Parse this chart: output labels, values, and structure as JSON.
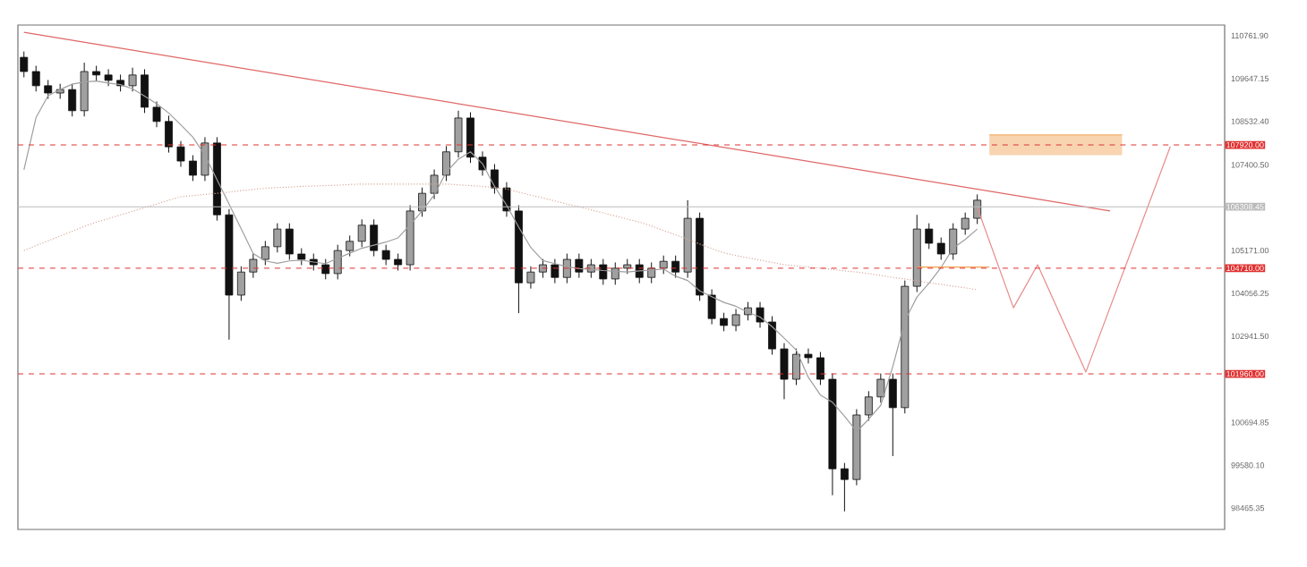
{
  "chart_data": {
    "type": "candlestick",
    "color": "#111111",
    "categories": [
      null,
      null,
      null,
      null,
      null,
      null,
      null,
      null,
      null,
      null,
      null,
      null,
      null,
      null,
      null,
      null,
      null,
      null,
      null,
      null,
      null,
      null,
      null,
      null,
      null,
      null,
      null,
      null,
      null,
      null,
      null,
      null,
      null,
      null,
      null,
      null,
      null,
      null,
      null,
      null,
      null,
      null,
      null,
      null,
      null,
      null,
      null,
      null,
      null,
      null,
      null,
      null,
      null,
      null,
      null,
      null,
      null,
      null,
      null,
      null,
      null,
      null,
      null,
      null,
      null,
      null,
      null,
      null,
      null,
      null,
      null,
      null,
      null,
      null,
      null,
      null,
      null,
      null,
      null,
      null,
      null,
      null,
      null,
      null,
      null,
      null,
      null,
      null,
      null,
      null,
      null,
      null,
      null,
      null,
      null,
      null,
      null,
      null,
      null,
      null
    ],
    "ohlc": [
      [
        110200,
        110350,
        109680,
        109830
      ],
      [
        109830,
        109980,
        109310,
        109460
      ],
      [
        109460,
        109610,
        109120,
        109270
      ],
      [
        109270,
        109510,
        109120,
        109360
      ],
      [
        109360,
        109510,
        108660,
        108810
      ],
      [
        108810,
        110060,
        108660,
        109830
      ],
      [
        109830,
        109980,
        109590,
        109740
      ],
      [
        109740,
        109890,
        109450,
        109600
      ],
      [
        109600,
        109750,
        109310,
        109460
      ],
      [
        109460,
        109930,
        109310,
        109740
      ],
      [
        109740,
        109890,
        108750,
        108900
      ],
      [
        108900,
        109050,
        108380,
        108530
      ],
      [
        108530,
        108680,
        107720,
        107870
      ],
      [
        107870,
        108020,
        107350,
        107500
      ],
      [
        107500,
        107650,
        106980,
        107130
      ],
      [
        107130,
        108120,
        106980,
        107970
      ],
      [
        107970,
        108120,
        105950,
        106100
      ],
      [
        106100,
        106250,
        102850,
        104010
      ],
      [
        104010,
        104760,
        103860,
        104610
      ],
      [
        104610,
        105090,
        104460,
        104940
      ],
      [
        104940,
        105420,
        104790,
        105270
      ],
      [
        105270,
        105880,
        105120,
        105730
      ],
      [
        105730,
        105880,
        104930,
        105080
      ],
      [
        105080,
        105230,
        104790,
        104940
      ],
      [
        104940,
        105090,
        104650,
        104800
      ],
      [
        104800,
        104950,
        104420,
        104570
      ],
      [
        104570,
        105320,
        104420,
        105170
      ],
      [
        105170,
        105560,
        105020,
        105410
      ],
      [
        105410,
        105980,
        105260,
        105830
      ],
      [
        105830,
        105980,
        105020,
        105170
      ],
      [
        105170,
        105320,
        104790,
        104940
      ],
      [
        104940,
        105090,
        104650,
        104800
      ],
      [
        104800,
        106350,
        104650,
        106200
      ],
      [
        106200,
        106810,
        106050,
        106660
      ],
      [
        106660,
        107280,
        106510,
        107130
      ],
      [
        107130,
        107890,
        106980,
        107740
      ],
      [
        107740,
        108810,
        107590,
        108620
      ],
      [
        108620,
        108770,
        107450,
        107600
      ],
      [
        107600,
        107750,
        107120,
        107270
      ],
      [
        107270,
        107420,
        106650,
        106800
      ],
      [
        106800,
        106950,
        106050,
        106200
      ],
      [
        106200,
        106350,
        103540,
        104330
      ],
      [
        104330,
        104760,
        104180,
        104610
      ],
      [
        104610,
        104950,
        104460,
        104800
      ],
      [
        104800,
        104950,
        104320,
        104470
      ],
      [
        104470,
        105090,
        104320,
        104940
      ],
      [
        104940,
        105090,
        104460,
        104610
      ],
      [
        104610,
        104950,
        104460,
        104800
      ],
      [
        104800,
        104950,
        104280,
        104430
      ],
      [
        104430,
        104860,
        104280,
        104710
      ],
      [
        104710,
        104950,
        104560,
        104800
      ],
      [
        104800,
        104950,
        104320,
        104470
      ],
      [
        104470,
        104860,
        104320,
        104710
      ],
      [
        104710,
        105040,
        104560,
        104890
      ],
      [
        104890,
        105040,
        104460,
        104610
      ],
      [
        104610,
        106480,
        104460,
        106010
      ],
      [
        106010,
        106160,
        103860,
        104010
      ],
      [
        104010,
        104160,
        103250,
        103400
      ],
      [
        103400,
        103550,
        103070,
        103220
      ],
      [
        103220,
        103650,
        103070,
        103500
      ],
      [
        103500,
        103830,
        103350,
        103680
      ],
      [
        103680,
        103830,
        103160,
        103310
      ],
      [
        103310,
        103460,
        102460,
        102610
      ],
      [
        102610,
        102760,
        101300,
        101820
      ],
      [
        101820,
        102620,
        101670,
        102470
      ],
      [
        102470,
        102620,
        102230,
        102380
      ],
      [
        102380,
        102530,
        101670,
        101820
      ],
      [
        101820,
        101970,
        98800,
        99490
      ],
      [
        99490,
        99640,
        98380,
        99210
      ],
      [
        99210,
        101040,
        99060,
        100890
      ],
      [
        100890,
        101510,
        100740,
        101360
      ],
      [
        101360,
        101970,
        101210,
        101820
      ],
      [
        101820,
        101970,
        99820,
        101080
      ],
      [
        101080,
        104390,
        100930,
        104240
      ],
      [
        104240,
        106100,
        104090,
        105730
      ],
      [
        105730,
        105880,
        105210,
        105360
      ],
      [
        105360,
        105510,
        104930,
        105080
      ],
      [
        105080,
        105880,
        104930,
        105730
      ],
      [
        105730,
        106160,
        105580,
        106010
      ],
      [
        106010,
        106630,
        105860,
        106480
      ],
      null,
      null,
      null,
      null,
      null,
      null,
      null,
      null,
      null,
      null,
      null,
      null,
      null,
      null,
      null,
      null,
      null,
      null,
      null,
      null
    ],
    "ylim": [
      97910,
      111040
    ],
    "yticks": [
      {
        "value": 110761.9,
        "label": "110761.90"
      },
      {
        "value": 109647.15,
        "label": "109647.15"
      },
      {
        "value": 108532.4,
        "label": "108532.40"
      },
      {
        "value": 107400.5,
        "label": "107400.50"
      },
      {
        "value": 105171.0,
        "label": "105171.00"
      },
      {
        "value": 104056.25,
        "label": "104056.25"
      },
      {
        "value": 102941.5,
        "label": "102941.50"
      },
      {
        "value": 100694.85,
        "label": "100694.85"
      },
      {
        "value": 99580.1,
        "label": "99580.10"
      },
      {
        "value": 98465.35,
        "label": "98465.35"
      }
    ],
    "tick_labels": "y",
    "series": [
      {
        "type": "line",
        "color": "#9e9e9e",
        "line_style": "solid",
        "values": [
          107270,
          108630,
          109200,
          109360,
          109500,
          109560,
          109580,
          109530,
          109490,
          109380,
          109190,
          108990,
          108750,
          108440,
          108120,
          107650,
          107010,
          106380,
          105740,
          105090,
          104900,
          104840,
          104900,
          104920,
          104870,
          104830,
          104970,
          105100,
          105230,
          105310,
          105390,
          105500,
          105840,
          106200,
          106620,
          107210,
          107550,
          107740,
          107430,
          106840,
          106350,
          105780,
          105250,
          104910,
          104830,
          104750,
          104700,
          104680,
          104650,
          104630,
          104610,
          104640,
          104660,
          104690,
          104500,
          104390,
          104120,
          103970,
          103820,
          103720,
          103560,
          103440,
          103190,
          102890,
          102580,
          101870,
          101410,
          101220,
          100860,
          100460,
          100780,
          101140,
          102150,
          103340,
          103960,
          104320,
          104730,
          105230,
          105460,
          105730,
          null,
          null,
          null,
          null,
          null,
          null,
          null,
          null,
          null,
          null,
          null,
          null,
          null,
          null,
          null,
          null,
          null,
          null,
          null,
          null
        ]
      },
      {
        "type": "line",
        "color": "#d9a89a",
        "line_style": "dotted",
        "values": [
          105170,
          105300,
          105420,
          105550,
          105670,
          105800,
          105910,
          106000,
          106100,
          106190,
          106290,
          106380,
          106480,
          106570,
          106600,
          106630,
          106660,
          106690,
          106730,
          106760,
          106790,
          106810,
          106820,
          106840,
          106850,
          106860,
          106870,
          106890,
          106900,
          106900,
          106900,
          106900,
          106900,
          106900,
          106900,
          106900,
          106880,
          106860,
          106840,
          106810,
          106770,
          106690,
          106610,
          106540,
          106460,
          106380,
          106310,
          106230,
          106150,
          106070,
          105990,
          105910,
          105810,
          105690,
          105580,
          105460,
          105340,
          105220,
          105110,
          105040,
          104980,
          104920,
          104860,
          104800,
          104770,
          104740,
          104710,
          104680,
          104640,
          104610,
          104570,
          104520,
          104470,
          104430,
          104380,
          104330,
          104290,
          104240,
          104200,
          104150,
          null,
          null,
          null,
          null,
          null,
          null,
          null,
          null,
          null,
          null,
          null,
          null,
          null,
          null,
          null,
          null,
          null,
          null,
          null,
          null
        ]
      },
      {
        "type": "line",
        "color": "#e06666",
        "line_style": "solid",
        "values": [
          110850,
          null,
          null,
          null,
          null,
          null,
          null,
          null,
          null,
          null,
          null,
          null,
          null,
          null,
          null,
          null,
          null,
          null,
          null,
          null,
          null,
          null,
          null,
          null,
          null,
          null,
          null,
          null,
          null,
          null,
          null,
          null,
          null,
          null,
          null,
          null,
          null,
          null,
          null,
          null,
          null,
          null,
          null,
          null,
          null,
          null,
          null,
          null,
          null,
          null,
          null,
          null,
          null,
          null,
          null,
          null,
          null,
          null,
          null,
          null,
          null,
          null,
          null,
          null,
          null,
          null,
          null,
          null,
          null,
          null,
          null,
          null,
          null,
          null,
          null,
          null,
          null,
          null,
          null,
          null,
          null,
          null,
          null,
          null,
          null,
          null,
          null,
          null,
          null,
          null,
          106200,
          null,
          null,
          null,
          null,
          null,
          null,
          null,
          null,
          null
        ]
      },
      {
        "type": "line",
        "color": "#e88a8a",
        "line_style": "solid",
        "values": [
          null,
          null,
          null,
          null,
          null,
          null,
          null,
          null,
          null,
          null,
          null,
          null,
          null,
          null,
          null,
          null,
          null,
          null,
          null,
          null,
          null,
          null,
          null,
          null,
          null,
          null,
          null,
          null,
          null,
          null,
          null,
          null,
          null,
          null,
          null,
          null,
          null,
          null,
          null,
          null,
          null,
          null,
          null,
          null,
          null,
          null,
          null,
          null,
          null,
          null,
          null,
          null,
          null,
          null,
          null,
          null,
          null,
          null,
          null,
          null,
          null,
          null,
          null,
          null,
          null,
          null,
          null,
          null,
          null,
          null,
          null,
          null,
          null,
          null,
          null,
          null,
          null,
          null,
          null,
          106290,
          null,
          null,
          103680,
          null,
          104800,
          null,
          null,
          null,
          102010,
          null,
          null,
          null,
          null,
          null,
          null,
          107880,
          null,
          null,
          null,
          null
        ]
      },
      {
        "type": "line",
        "color": "#f2b070",
        "line_style": "solid",
        "values": [
          null,
          null,
          null,
          null,
          null,
          null,
          null,
          null,
          null,
          null,
          null,
          null,
          null,
          null,
          null,
          null,
          null,
          null,
          null,
          null,
          null,
          null,
          null,
          null,
          null,
          null,
          null,
          null,
          null,
          null,
          null,
          null,
          null,
          null,
          null,
          null,
          null,
          null,
          null,
          null,
          null,
          null,
          null,
          null,
          null,
          null,
          null,
          null,
          null,
          null,
          null,
          null,
          null,
          null,
          null,
          null,
          null,
          null,
          null,
          null,
          null,
          null,
          null,
          null,
          null,
          null,
          null,
          null,
          null,
          null,
          null,
          null,
          null,
          null,
          null,
          null,
          null,
          null,
          null,
          null,
          108180,
          null,
          null,
          null,
          null,
          null,
          null,
          null,
          null,
          null,
          null,
          108180,
          null,
          null,
          null,
          null,
          null,
          null,
          null,
          null
        ],
        "lower": [
          null,
          null,
          null,
          null,
          null,
          null,
          null,
          null,
          null,
          null,
          null,
          null,
          null,
          null,
          null,
          null,
          null,
          null,
          null,
          null,
          null,
          null,
          null,
          null,
          null,
          null,
          null,
          null,
          null,
          null,
          null,
          null,
          null,
          null,
          null,
          null,
          null,
          null,
          null,
          null,
          null,
          null,
          null,
          null,
          null,
          null,
          null,
          null,
          null,
          null,
          null,
          null,
          null,
          null,
          null,
          null,
          null,
          null,
          null,
          null,
          null,
          null,
          null,
          null,
          null,
          null,
          null,
          null,
          null,
          null,
          null,
          null,
          null,
          null,
          null,
          null,
          null,
          null,
          null,
          null,
          107650,
          null,
          null,
          null,
          null,
          null,
          null,
          null,
          null,
          null,
          null,
          107650,
          null,
          null,
          null,
          null,
          null,
          null,
          null,
          null
        ],
        "upper": [
          null,
          null,
          null,
          null,
          null,
          null,
          null,
          null,
          null,
          null,
          null,
          null,
          null,
          null,
          null,
          null,
          null,
          null,
          null,
          null,
          null,
          null,
          null,
          null,
          null,
          null,
          null,
          null,
          null,
          null,
          null,
          null,
          null,
          null,
          null,
          null,
          null,
          null,
          null,
          null,
          null,
          null,
          null,
          null,
          null,
          null,
          null,
          null,
          null,
          null,
          null,
          null,
          null,
          null,
          null,
          null,
          null,
          null,
          null,
          null,
          null,
          null,
          null,
          null,
          null,
          null,
          null,
          null,
          null,
          null,
          null,
          null,
          null,
          null,
          null,
          null,
          null,
          null,
          null,
          null,
          108180,
          null,
          null,
          null,
          null,
          null,
          null,
          null,
          null,
          null,
          null,
          108180,
          null,
          null,
          null,
          null,
          null,
          null,
          null,
          null
        ]
      },
      {
        "type": "line",
        "color": "#f0a050",
        "line_style": "solid",
        "values": [
          null,
          null,
          null,
          null,
          null,
          null,
          null,
          null,
          null,
          null,
          null,
          null,
          null,
          null,
          null,
          null,
          null,
          null,
          null,
          null,
          null,
          null,
          null,
          null,
          null,
          null,
          null,
          null,
          null,
          null,
          null,
          null,
          null,
          null,
          null,
          null,
          null,
          null,
          null,
          null,
          null,
          null,
          null,
          null,
          null,
          null,
          null,
          null,
          null,
          null,
          null,
          null,
          null,
          null,
          null,
          null,
          null,
          null,
          null,
          null,
          null,
          null,
          null,
          null,
          null,
          null,
          null,
          null,
          null,
          null,
          null,
          null,
          null,
          null,
          104740,
          null,
          null,
          null,
          null,
          null,
          104740,
          null,
          null,
          null,
          null,
          null,
          null,
          null,
          null,
          null,
          null,
          null,
          null,
          null,
          null,
          null,
          null,
          null,
          null,
          null
        ]
      }
    ],
    "ref_lines": [
      {
        "axis": "y",
        "value": 107920,
        "label": "107920.00",
        "color": "#e03030",
        "line_style": "dashed"
      },
      {
        "axis": "y",
        "value": 106308.45,
        "label": "106308.45",
        "color": "#bbbbbb",
        "line_style": "solid"
      },
      {
        "axis": "y",
        "value": 104710,
        "label": "104710.00",
        "color": "#e03030",
        "line_style": "dashed"
      },
      {
        "axis": "y",
        "value": 101960,
        "label": "101960.00",
        "color": "#e03030",
        "line_style": "dashed"
      }
    ]
  }
}
